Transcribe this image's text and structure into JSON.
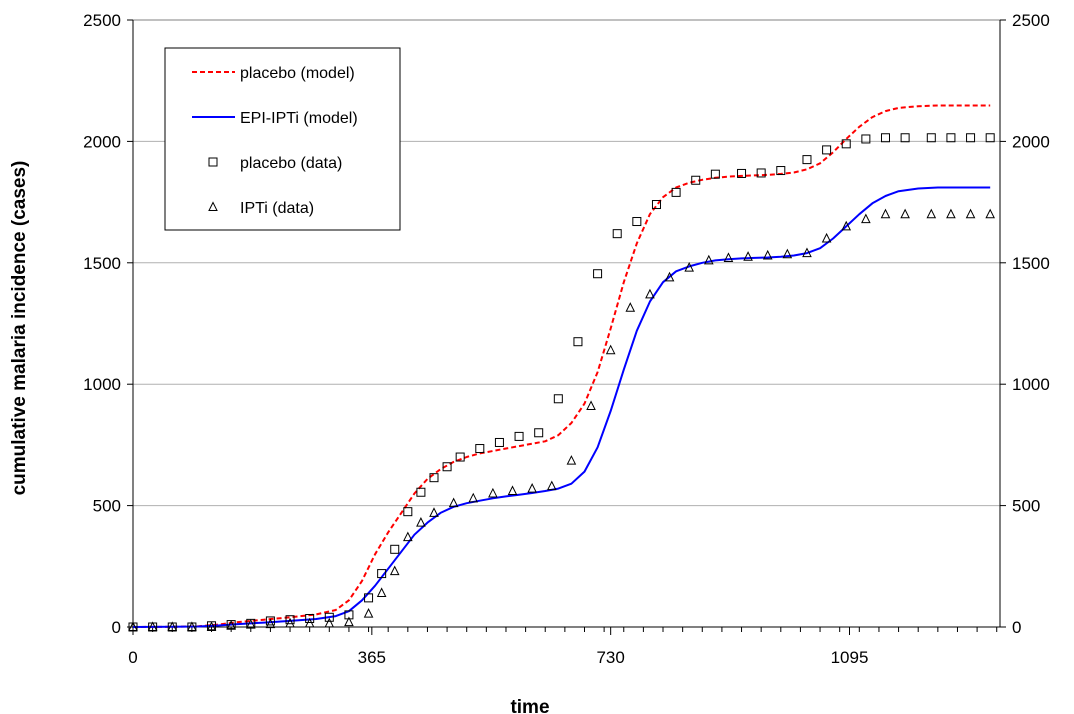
{
  "chart_data": {
    "type": "line",
    "title": "",
    "xlabel": "time",
    "ylabel": "cumulative malaria incidence (cases)",
    "xlim": [
      0,
      1325
    ],
    "ylim": [
      0,
      2500
    ],
    "x_ticks": [
      0,
      365,
      730,
      1095
    ],
    "y_ticks": [
      0,
      500,
      1000,
      1500,
      2000,
      2500
    ],
    "grid": "horizontal",
    "right_axis_ticks": true,
    "legend_position": "top-left",
    "series": [
      {
        "name": "placebo (model)",
        "kind": "line",
        "style": "dashed",
        "color": "#ff0000",
        "x": [
          0,
          60,
          100,
          130,
          160,
          200,
          240,
          280,
          310,
          330,
          350,
          370,
          390,
          410,
          430,
          450,
          470,
          490,
          510,
          530,
          550,
          570,
          590,
          610,
          630,
          650,
          670,
          690,
          710,
          730,
          750,
          770,
          790,
          810,
          830,
          850,
          870,
          890,
          910,
          930,
          950,
          970,
          990,
          1010,
          1030,
          1050,
          1070,
          1090,
          1110,
          1130,
          1150,
          1170,
          1200,
          1230,
          1260,
          1290,
          1310
        ],
        "y": [
          0,
          1,
          3,
          10,
          20,
          30,
          40,
          52,
          70,
          110,
          190,
          300,
          390,
          470,
          550,
          610,
          650,
          680,
          700,
          715,
          725,
          735,
          745,
          755,
          765,
          790,
          840,
          920,
          1050,
          1230,
          1420,
          1580,
          1700,
          1770,
          1810,
          1830,
          1842,
          1850,
          1855,
          1858,
          1860,
          1862,
          1866,
          1872,
          1885,
          1910,
          1955,
          2010,
          2060,
          2100,
          2125,
          2138,
          2145,
          2148,
          2148,
          2148,
          2148
        ]
      },
      {
        "name": "EPI-IPTi (model)",
        "kind": "line",
        "style": "solid",
        "color": "#0000ff",
        "x": [
          0,
          60,
          100,
          130,
          160,
          200,
          240,
          280,
          310,
          330,
          350,
          370,
          390,
          410,
          430,
          450,
          470,
          490,
          510,
          530,
          550,
          570,
          590,
          610,
          630,
          650,
          670,
          690,
          710,
          730,
          750,
          770,
          790,
          810,
          830,
          850,
          870,
          890,
          910,
          930,
          950,
          970,
          990,
          1010,
          1030,
          1050,
          1070,
          1090,
          1110,
          1130,
          1150,
          1170,
          1200,
          1230,
          1260,
          1290,
          1310
        ],
        "y": [
          0,
          1,
          2,
          6,
          12,
          18,
          25,
          33,
          45,
          65,
          110,
          170,
          240,
          310,
          380,
          430,
          470,
          495,
          510,
          520,
          530,
          538,
          545,
          552,
          560,
          570,
          590,
          640,
          740,
          890,
          1060,
          1220,
          1340,
          1420,
          1465,
          1485,
          1500,
          1510,
          1515,
          1518,
          1520,
          1522,
          1525,
          1530,
          1540,
          1560,
          1600,
          1650,
          1700,
          1745,
          1775,
          1795,
          1806,
          1810,
          1810,
          1810,
          1810
        ]
      },
      {
        "name": "placebo (data)",
        "kind": "markers",
        "marker": "square",
        "color": "#000000",
        "x": [
          0,
          30,
          60,
          90,
          120,
          150,
          180,
          210,
          240,
          270,
          300,
          330,
          360,
          380,
          400,
          420,
          440,
          460,
          480,
          500,
          530,
          560,
          590,
          620,
          650,
          680,
          710,
          740,
          770,
          800,
          830,
          860,
          890,
          930,
          960,
          990,
          1030,
          1060,
          1090,
          1120,
          1150,
          1180,
          1220,
          1250,
          1280,
          1310
        ],
        "y": [
          0,
          0,
          0,
          0,
          5,
          10,
          15,
          25,
          30,
          35,
          40,
          50,
          120,
          220,
          320,
          475,
          555,
          615,
          660,
          700,
          735,
          760,
          785,
          800,
          940,
          1175,
          1455,
          1620,
          1670,
          1740,
          1790,
          1840,
          1865,
          1868,
          1870,
          1880,
          1925,
          1965,
          1990,
          2010,
          2015,
          2015,
          2015,
          2015,
          2015,
          2015
        ]
      },
      {
        "name": "IPTi (data)",
        "kind": "markers",
        "marker": "triangle",
        "color": "#000000",
        "x": [
          0,
          30,
          60,
          90,
          120,
          150,
          180,
          210,
          240,
          270,
          300,
          330,
          360,
          380,
          400,
          420,
          440,
          460,
          490,
          520,
          550,
          580,
          610,
          640,
          670,
          700,
          730,
          760,
          790,
          820,
          850,
          880,
          910,
          940,
          970,
          1000,
          1030,
          1060,
          1090,
          1120,
          1150,
          1180,
          1220,
          1250,
          1280,
          1310
        ],
        "y": [
          0,
          0,
          0,
          0,
          0,
          5,
          10,
          12,
          15,
          15,
          15,
          20,
          55,
          140,
          230,
          370,
          430,
          470,
          510,
          530,
          550,
          560,
          570,
          580,
          685,
          910,
          1140,
          1315,
          1370,
          1440,
          1480,
          1510,
          1520,
          1525,
          1530,
          1535,
          1540,
          1600,
          1650,
          1680,
          1700,
          1700,
          1700,
          1700,
          1700,
          1700
        ]
      }
    ]
  }
}
